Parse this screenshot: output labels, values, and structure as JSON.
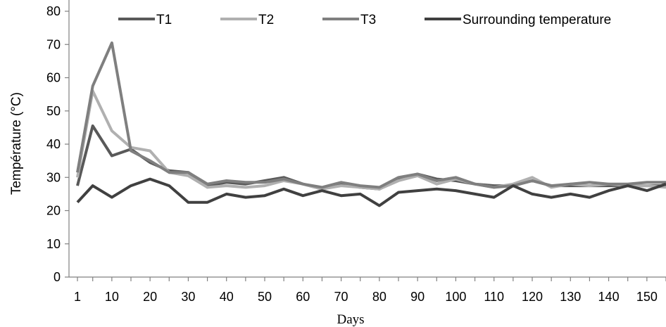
{
  "chart_data": {
    "type": "line",
    "title": "",
    "xlabel": "Days",
    "ylabel": "Température (°C)",
    "ylim": [
      0,
      80
    ],
    "yticks": [
      0,
      10,
      20,
      30,
      40,
      50,
      60,
      70,
      80
    ],
    "xticks": [
      1,
      10,
      20,
      30,
      40,
      50,
      60,
      70,
      80,
      90,
      100,
      110,
      120,
      130,
      140,
      150
    ],
    "xlim": [
      1,
      155
    ],
    "grid": false,
    "legend_position": "top",
    "x": [
      1,
      5,
      10,
      15,
      20,
      25,
      30,
      35,
      40,
      45,
      50,
      55,
      60,
      65,
      70,
      75,
      80,
      85,
      90,
      95,
      100,
      105,
      110,
      115,
      120,
      125,
      130,
      135,
      140,
      145,
      150,
      155
    ],
    "series": [
      {
        "name": "T1",
        "color": "#595959",
        "values": [
          27.5,
          45.5,
          36.5,
          38.5,
          34.5,
          32,
          31.5,
          27.5,
          28.5,
          28,
          29,
          30,
          28,
          26.5,
          28,
          27,
          26.5,
          29.5,
          31,
          29.5,
          29,
          28,
          27.5,
          27.5,
          29,
          27.5,
          27.5,
          27.5,
          27.5,
          27.5,
          27.5,
          27.5
        ]
      },
      {
        "name": "T2",
        "color": "#b0b0b0",
        "values": [
          30,
          56,
          44,
          39,
          38,
          31.5,
          30.5,
          27,
          27.5,
          27,
          27.5,
          29,
          28,
          26.5,
          27.5,
          27,
          26.5,
          29,
          30.5,
          28,
          29.5,
          28,
          27,
          28,
          30,
          27,
          28,
          27.5,
          28,
          27.5,
          27.5,
          27
        ]
      },
      {
        "name": "T3",
        "color": "#7f7f7f",
        "values": [
          31.5,
          57.5,
          70.5,
          38,
          35,
          31.5,
          31.5,
          28,
          29,
          28.5,
          28.5,
          29.5,
          28,
          27,
          28.5,
          27.5,
          27,
          30,
          31,
          29,
          30,
          28,
          27,
          27.5,
          29,
          27.5,
          28,
          28.5,
          28,
          28,
          28.5,
          28.5
        ]
      },
      {
        "name": "Surrounding temperature",
        "color": "#404040",
        "values": [
          22.5,
          27.5,
          24,
          27.5,
          29.5,
          27.5,
          22.5,
          22.5,
          25,
          24,
          24.5,
          26.5,
          24.5,
          26,
          24.5,
          25,
          21.5,
          25.5,
          26,
          26.5,
          26,
          25,
          24,
          27.5,
          25,
          24,
          25,
          24,
          26,
          27.5,
          26,
          28
        ]
      }
    ]
  }
}
